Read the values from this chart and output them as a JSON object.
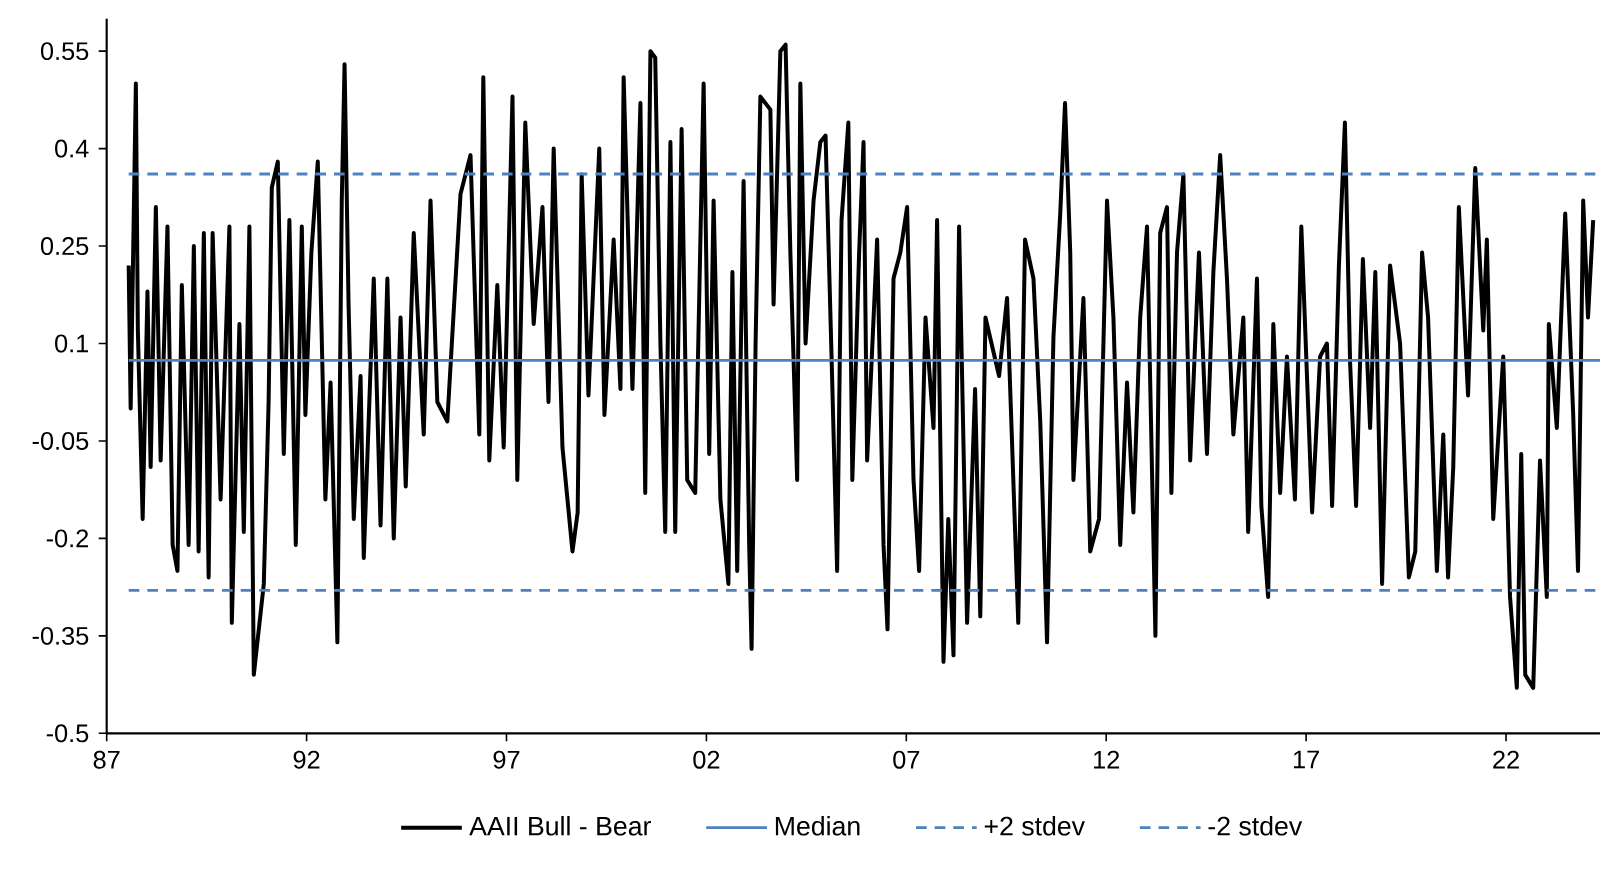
{
  "chart_data": {
    "type": "line",
    "legend": "bottom",
    "xlim": [
      1987,
      2024.35
    ],
    "ylim": [
      -0.5,
      0.6
    ],
    "xticks": [
      {
        "value": 1987,
        "label": "87"
      },
      {
        "value": 1992,
        "label": "92"
      },
      {
        "value": 1997,
        "label": "97"
      },
      {
        "value": 2002,
        "label": "02"
      },
      {
        "value": 2007,
        "label": "07"
      },
      {
        "value": 2012,
        "label": "12"
      },
      {
        "value": 2017,
        "label": "17"
      },
      {
        "value": 2022,
        "label": "22"
      }
    ],
    "yticks": [
      -0.5,
      -0.35,
      -0.2,
      -0.05,
      0.1,
      0.25,
      0.4,
      0.55
    ],
    "series": [
      {
        "name": "AAII Bull - Bear",
        "color": "#000000",
        "line_style": "solid",
        "x": [
          1987.55,
          1987.6,
          1987.65,
          1987.73,
          1987.78,
          1987.9,
          1988.02,
          1988.1,
          1988.23,
          1988.35,
          1988.52,
          1988.65,
          1988.77,
          1988.88,
          1989.05,
          1989.18,
          1989.3,
          1989.43,
          1989.55,
          1989.65,
          1989.85,
          1990.07,
          1990.13,
          1990.32,
          1990.43,
          1990.57,
          1990.68,
          1990.82,
          1990.93,
          1991.05,
          1991.13,
          1991.28,
          1991.43,
          1991.57,
          1991.73,
          1991.88,
          1991.97,
          1992.12,
          1992.28,
          1992.47,
          1992.6,
          1992.77,
          1992.88,
          1992.95,
          1993.05,
          1993.18,
          1993.35,
          1993.43,
          1993.68,
          1993.85,
          1994.02,
          1994.18,
          1994.35,
          1994.48,
          1994.68,
          1994.93,
          1995.1,
          1995.27,
          1995.52,
          1995.85,
          1996.1,
          1996.32,
          1996.42,
          1996.57,
          1996.77,
          1996.93,
          1997.15,
          1997.27,
          1997.47,
          1997.68,
          1997.9,
          1998.05,
          1998.18,
          1998.4,
          1998.65,
          1998.78,
          1998.88,
          1999.05,
          1999.32,
          1999.45,
          1999.68,
          1999.85,
          1999.93,
          2000.0,
          2000.15,
          2000.35,
          2000.47,
          2000.6,
          2000.72,
          2000.85,
          2000.97,
          2001.1,
          2001.22,
          2001.38,
          2001.52,
          2001.72,
          2001.93,
          2002.07,
          2002.18,
          2002.35,
          2002.55,
          2002.65,
          2002.77,
          2002.93,
          2003.07,
          2003.13,
          2003.23,
          2003.35,
          2003.47,
          2003.6,
          2003.68,
          2003.85,
          2003.98,
          2004.1,
          2004.27,
          2004.35,
          2004.48,
          2004.68,
          2004.85,
          2004.98,
          2005.13,
          2005.27,
          2005.38,
          2005.55,
          2005.65,
          2005.82,
          2005.93,
          2006.02,
          2006.27,
          2006.43,
          2006.53,
          2006.68,
          2006.85,
          2007.02,
          2007.18,
          2007.32,
          2007.48,
          2007.68,
          2007.77,
          2007.93,
          2008.05,
          2008.18,
          2008.32,
          2008.52,
          2008.72,
          2008.85,
          2008.98,
          2009.18,
          2009.32,
          2009.52,
          2009.8,
          2009.97,
          2010.18,
          2010.35,
          2010.52,
          2010.68,
          2010.85,
          2010.97,
          2011.1,
          2011.18,
          2011.43,
          2011.6,
          2011.82,
          2012.02,
          2012.18,
          2012.35,
          2012.52,
          2012.68,
          2012.85,
          2013.02,
          2013.23,
          2013.35,
          2013.52,
          2013.63,
          2013.77,
          2013.93,
          2014.1,
          2014.32,
          2014.52,
          2014.68,
          2014.85,
          2015.02,
          2015.18,
          2015.43,
          2015.55,
          2015.77,
          2015.88,
          2016.05,
          2016.18,
          2016.35,
          2016.52,
          2016.72,
          2016.88,
          2017.15,
          2017.35,
          2017.52,
          2017.65,
          2017.82,
          2017.97,
          2018.1,
          2018.25,
          2018.42,
          2018.6,
          2018.73,
          2018.9,
          2019.1,
          2019.35,
          2019.57,
          2019.73,
          2019.9,
          2020.05,
          2020.27,
          2020.43,
          2020.55,
          2020.68,
          2020.82,
          2021.05,
          2021.23,
          2021.43,
          2021.52,
          2021.68,
          2021.93,
          2022.1,
          2022.27,
          2022.38,
          2022.48,
          2022.68,
          2022.85,
          2023.02,
          2023.07,
          2023.27,
          2023.48,
          2023.68,
          2023.8,
          2023.93,
          2024.05,
          2024.18
        ],
        "values": [
          0.22,
          0.0,
          null,
          0.5,
          0.12,
          -0.17,
          0.18,
          -0.09,
          0.31,
          -0.08,
          0.28,
          -0.21,
          -0.25,
          0.19,
          -0.21,
          0.25,
          -0.22,
          0.27,
          -0.26,
          0.27,
          -0.14,
          0.28,
          -0.33,
          0.13,
          -0.19,
          0.28,
          -0.41,
          null,
          -0.27,
          0.01,
          0.34,
          0.38,
          -0.07,
          0.29,
          -0.21,
          0.28,
          -0.01,
          0.24,
          0.38,
          -0.14,
          0.04,
          -0.36,
          0.32,
          0.53,
          0.16,
          -0.17,
          0.05,
          -0.23,
          0.2,
          -0.18,
          0.2,
          -0.2,
          0.14,
          -0.12,
          0.27,
          -0.04,
          0.32,
          0.01,
          -0.02,
          0.33,
          0.39,
          -0.04,
          0.51,
          -0.08,
          0.19,
          -0.06,
          0.48,
          -0.11,
          0.44,
          0.13,
          0.31,
          0.01,
          0.4,
          -0.06,
          -0.22,
          -0.16,
          0.36,
          0.02,
          0.4,
          -0.01,
          0.26,
          0.03,
          0.51,
          null,
          0.03,
          0.47,
          -0.13,
          0.55,
          0.54,
          0.1,
          -0.19,
          0.41,
          -0.19,
          0.43,
          -0.11,
          -0.13,
          0.5,
          -0.07,
          0.32,
          -0.14,
          -0.27,
          0.21,
          -0.25,
          0.35,
          -0.21,
          -0.37,
          0.1,
          0.48,
          null,
          0.46,
          0.16,
          0.55,
          0.56,
          0.24,
          -0.11,
          0.5,
          0.1,
          0.32,
          0.41,
          0.42,
          0.08,
          -0.25,
          0.29,
          0.44,
          -0.11,
          0.24,
          0.41,
          -0.08,
          0.26,
          -0.21,
          -0.34,
          0.2,
          0.24,
          0.31,
          -0.11,
          -0.25,
          0.14,
          -0.03,
          0.29,
          -0.39,
          -0.17,
          -0.38,
          0.28,
          -0.33,
          0.03,
          -0.32,
          0.14,
          null,
          0.05,
          0.17,
          -0.33,
          0.26,
          0.2,
          -0.02,
          -0.36,
          0.11,
          0.3,
          0.47,
          0.24,
          -0.11,
          0.17,
          -0.22,
          -0.17,
          0.32,
          0.14,
          -0.21,
          0.04,
          -0.16,
          0.14,
          0.28,
          -0.35,
          0.27,
          0.31,
          -0.13,
          0.24,
          0.36,
          -0.08,
          0.24,
          -0.07,
          0.21,
          0.39,
          0.2,
          -0.04,
          0.14,
          -0.19,
          0.2,
          -0.15,
          -0.29,
          0.13,
          -0.13,
          0.08,
          -0.14,
          0.28,
          -0.16,
          0.08,
          0.1,
          -0.15,
          0.22,
          0.44,
          0.07,
          -0.15,
          0.23,
          -0.03,
          0.21,
          -0.27,
          0.22,
          0.1,
          -0.26,
          -0.22,
          0.24,
          0.14,
          -0.25,
          -0.04,
          -0.26,
          -0.09,
          0.31,
          0.02,
          0.37,
          0.12,
          0.26,
          -0.17,
          0.08,
          -0.29,
          -0.43,
          -0.07,
          -0.41,
          -0.43,
          -0.08,
          -0.29,
          0.13,
          -0.03,
          0.3,
          -0.01,
          -0.25,
          0.32,
          0.14,
          0.29
        ]
      },
      {
        "name": "Median",
        "color": "#4f81bd",
        "line_style": "solid",
        "x": [
          1987.55,
          2024.35
        ],
        "values": [
          0.074,
          0.074
        ]
      },
      {
        "name": "+2 stdev",
        "color": "#4f81bd",
        "line_style": "dashed",
        "x": [
          1987.55,
          2024.35
        ],
        "values": [
          0.361,
          0.361
        ]
      },
      {
        "name": "-2 stdev",
        "color": "#4f81bd",
        "line_style": "dashed",
        "x": [
          1987.55,
          2024.35
        ],
        "values": [
          -0.28,
          -0.28
        ]
      }
    ]
  }
}
